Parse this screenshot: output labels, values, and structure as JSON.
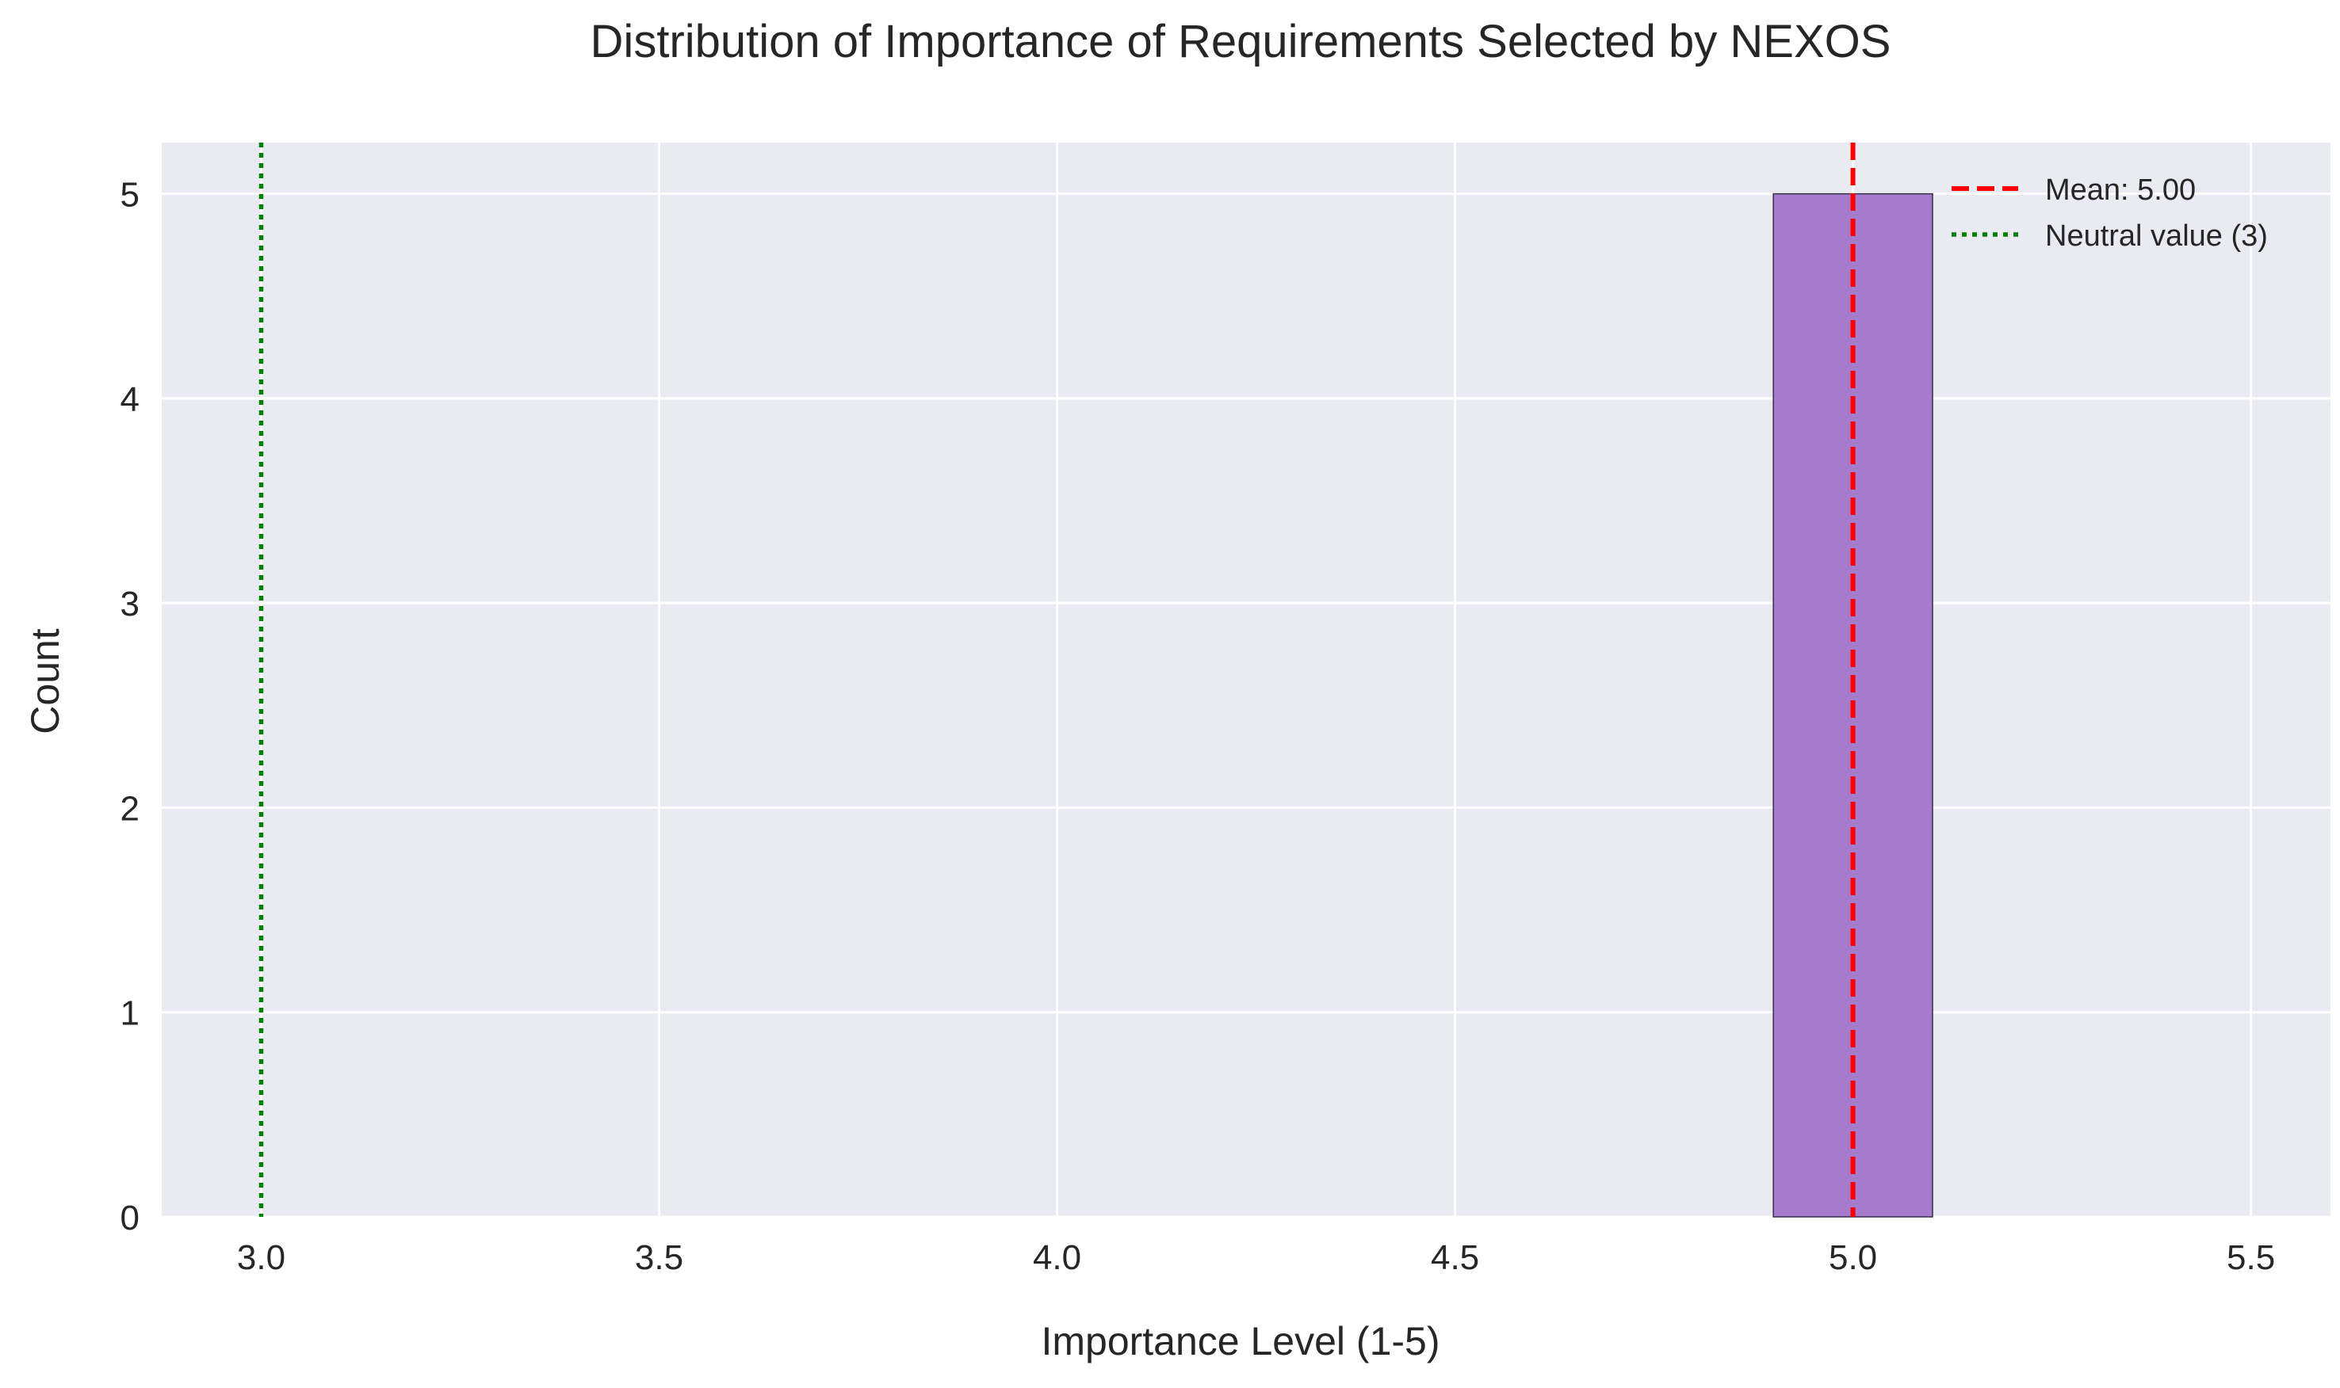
{
  "chart_data": {
    "type": "bar",
    "title": "Distribution of Importance of Requirements Selected by NEXOS",
    "xlabel": "Importance Level (1-5)",
    "ylabel": "Count",
    "xlim": [
      2.875,
      5.6
    ],
    "ylim": [
      0,
      5.25
    ],
    "xticks": [
      3.0,
      3.5,
      4.0,
      4.5,
      5.0,
      5.5
    ],
    "xtick_labels": [
      "3.0",
      "3.5",
      "4.0",
      "4.5",
      "5.0",
      "5.5"
    ],
    "yticks": [
      0,
      1,
      2,
      3,
      4,
      5
    ],
    "ytick_labels": [
      "0",
      "1",
      "2",
      "3",
      "4",
      "5"
    ],
    "bins": [
      {
        "x0": 4.9,
        "x1": 5.1,
        "count": 5
      }
    ],
    "bar_color": "#a67acd",
    "bar_edge_color": "#3a2a4a",
    "reference_lines": [
      {
        "label": "Mean: 5.00",
        "x": 5.0,
        "color": "#ff0000",
        "style": "dashed"
      },
      {
        "label": "Neutral value (3)",
        "x": 3.0,
        "color": "#008000",
        "style": "dotted"
      }
    ],
    "grid": true,
    "plot_background": "#eaeaf2",
    "grid_color": "#ffffff",
    "legend_position": "top-right"
  }
}
